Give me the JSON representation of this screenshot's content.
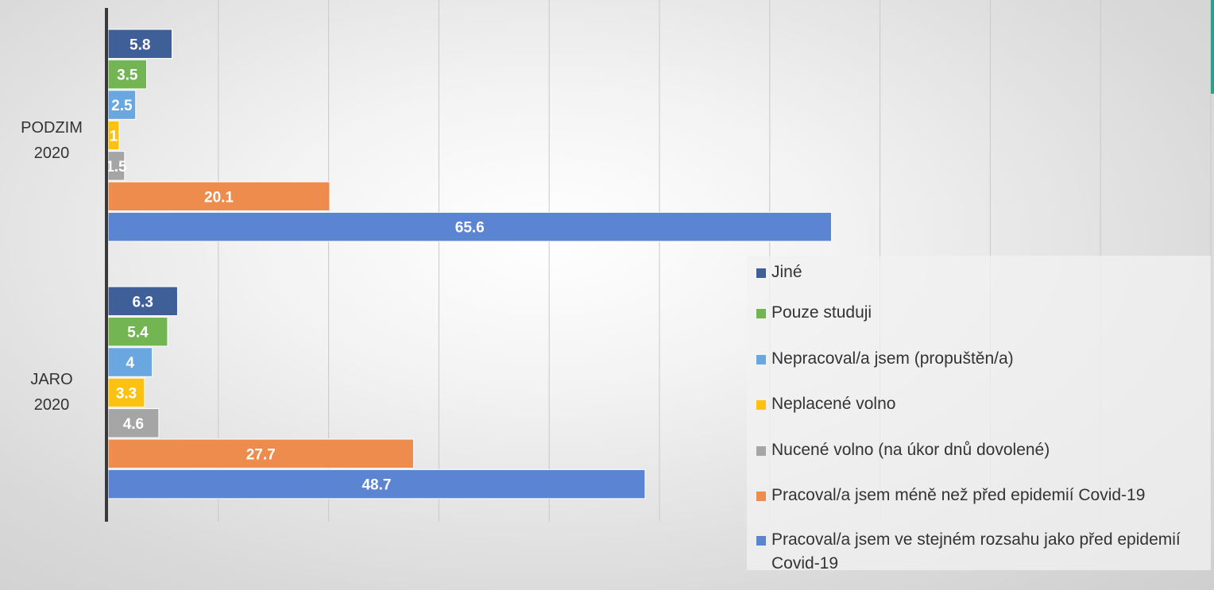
{
  "chart_data": {
    "type": "bar",
    "orientation": "horizontal",
    "categories": [
      "JARO 2020",
      "PODZIM 2020"
    ],
    "category_label_lines": [
      [
        "JARO",
        "2020"
      ],
      [
        "PODZIM",
        "2020"
      ]
    ],
    "series": [
      {
        "name": "Pracoval/a jsem ve stejném rozsahu jako před epidemií Covid-19",
        "color": "#5b85d3",
        "values": [
          48.7,
          65.6
        ]
      },
      {
        "name": "Pracoval/a jsem méně než před epidemií Covid-19",
        "color": "#ed8c4d",
        "values": [
          27.7,
          20.1
        ]
      },
      {
        "name": "Nucené volno (na úkor dnů dovolené)",
        "color": "#a5a5a5",
        "values": [
          4.6,
          1.5
        ]
      },
      {
        "name": "Neplacené volno",
        "color": "#fdc111",
        "values": [
          3.3,
          1
        ]
      },
      {
        "name": "Nepracoval/a jsem (propuštěn/a)",
        "color": "#6aa6e0",
        "values": [
          4,
          2.5
        ]
      },
      {
        "name": "Pouze studuji",
        "color": "#74b553",
        "values": [
          5.4,
          3.5
        ]
      },
      {
        "name": "Jiné",
        "color": "#3f5f98",
        "values": [
          6.3,
          5.8
        ]
      }
    ],
    "xlim": [
      0,
      100
    ],
    "grid": true,
    "data_labels": true,
    "legend_position": "bottom-right",
    "legend_order": [
      6,
      5,
      4,
      3,
      2,
      1,
      0
    ]
  }
}
